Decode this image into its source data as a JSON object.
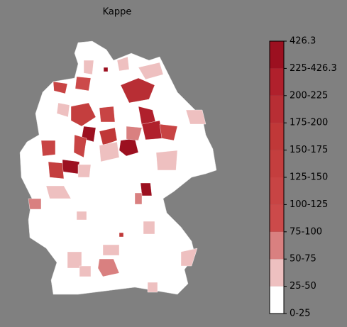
{
  "title": "Kappe",
  "colorbar": {
    "labels": [
      "0-25",
      "25-50",
      "50-75",
      "75-100",
      "100-125",
      "125-150",
      "150-175",
      "175-200",
      "200-225",
      "225-426.3",
      "426.3"
    ],
    "colors": [
      "#ffffff",
      "#eec0c0",
      "#d98080",
      "#cc4a4a",
      "#c84444",
      "#c43e3e",
      "#c03838",
      "#b82e34",
      "#b0202c",
      "#9c1020"
    ]
  }
}
